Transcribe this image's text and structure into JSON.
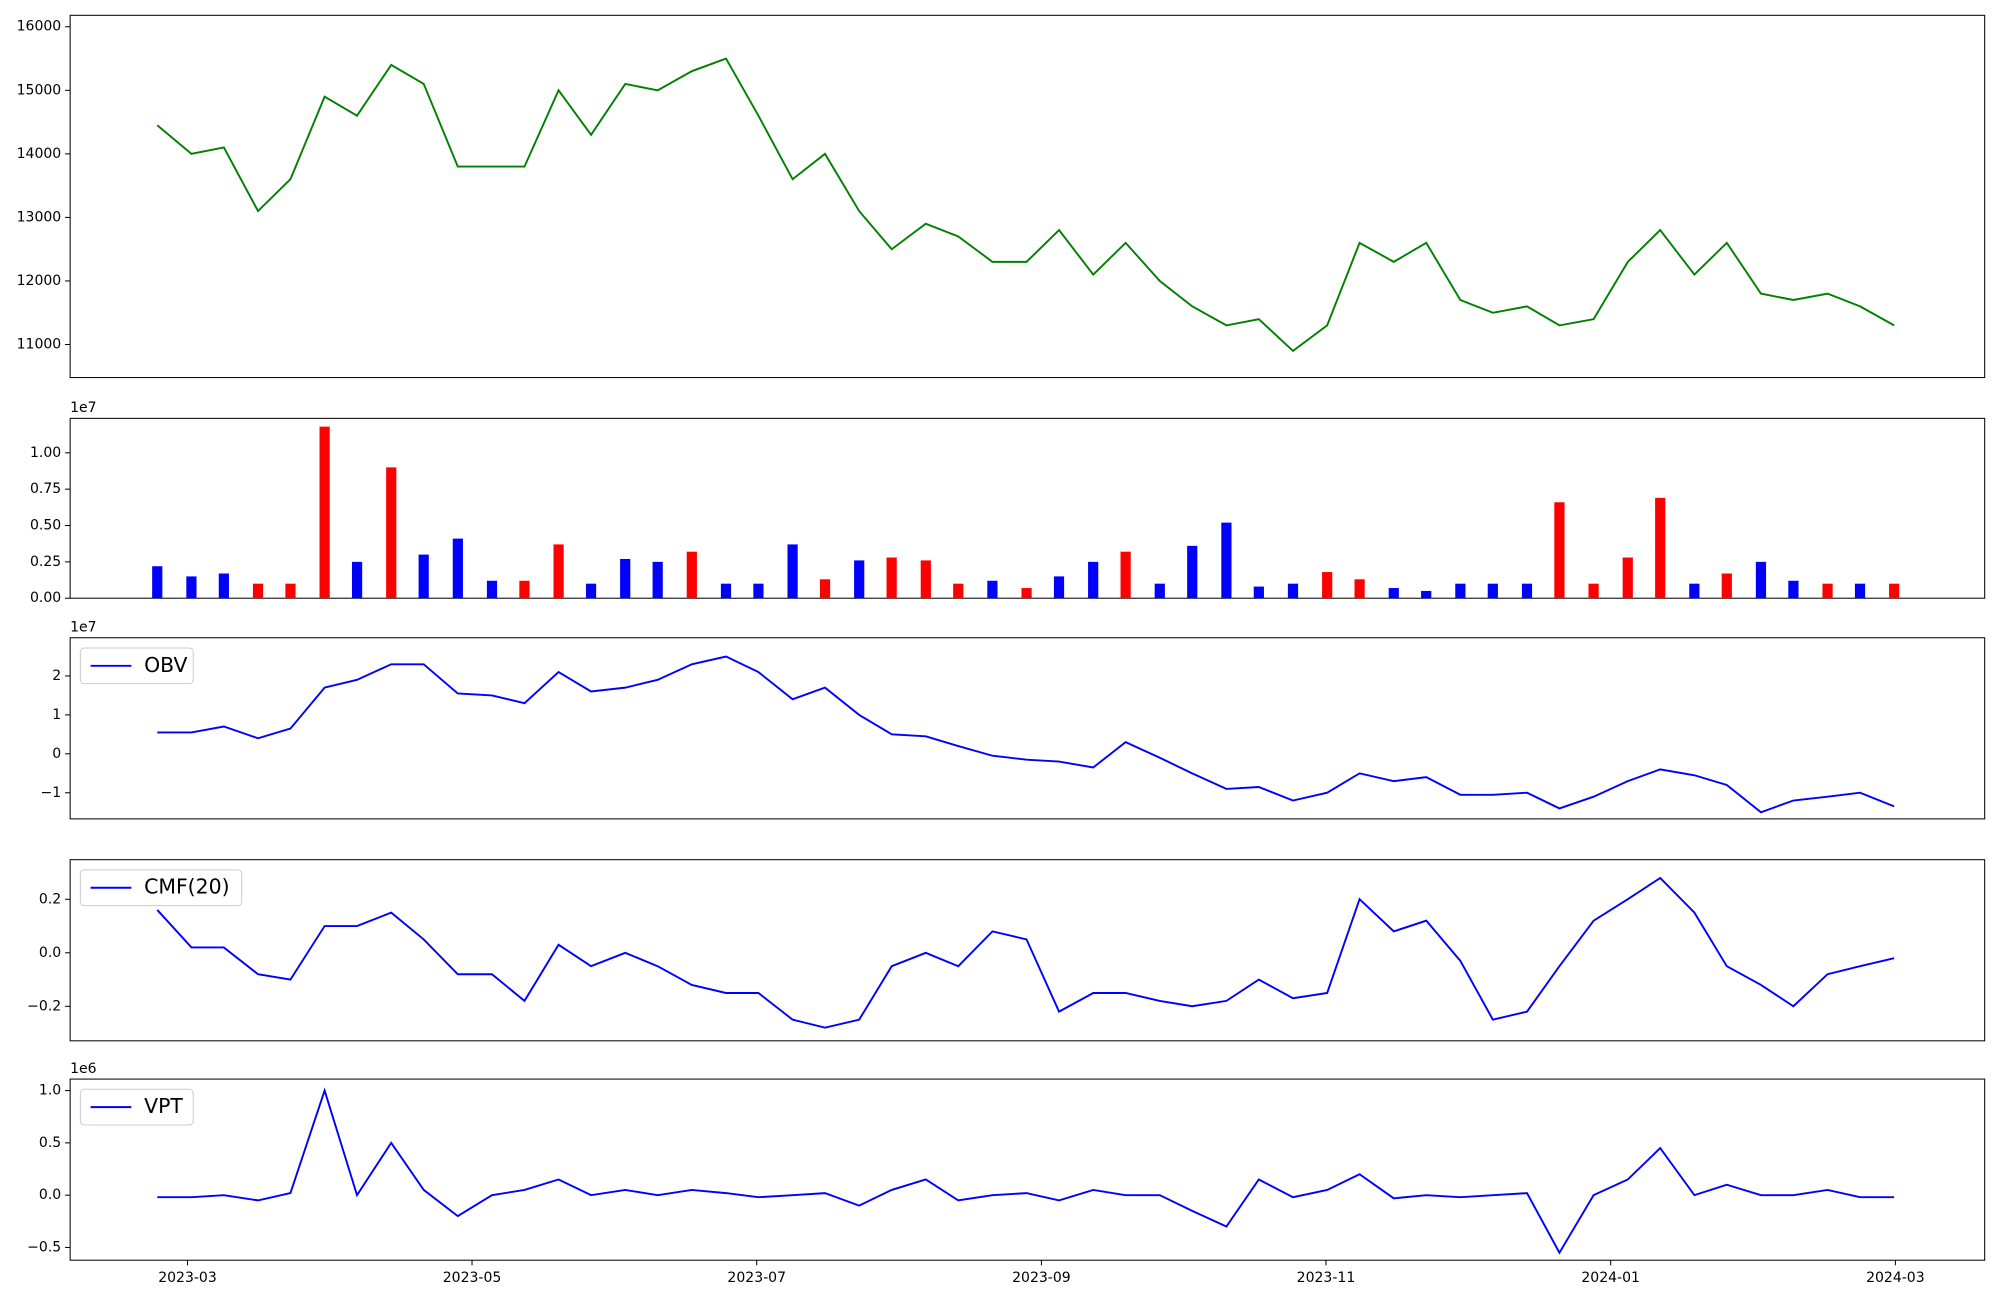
{
  "chart_data": [
    {
      "type": "line",
      "color": "#008000",
      "x": [
        2023.149,
        2023.169,
        2023.188,
        2023.208,
        2023.227,
        2023.247,
        2023.266,
        2023.286,
        2023.305,
        2023.325,
        2023.345,
        2023.364,
        2023.384,
        2023.403,
        2023.423,
        2023.442,
        2023.462,
        2023.482,
        2023.501,
        2023.521,
        2023.54,
        2023.56,
        2023.579,
        2023.599,
        2023.618,
        2023.638,
        2023.658,
        2023.677,
        2023.697,
        2023.716,
        2023.736,
        2023.755,
        2023.775,
        2023.794,
        2023.814,
        2023.834,
        2023.853,
        2023.873,
        2023.892,
        2023.912,
        2023.931,
        2023.951,
        2023.97,
        2023.99,
        2024.01,
        2024.029,
        2024.049,
        2024.068,
        2024.088,
        2024.107,
        2024.127,
        2024.146,
        2024.166
      ],
      "values": [
        14450,
        14000,
        14100,
        13100,
        13600,
        14900,
        14600,
        15400,
        15100,
        13800,
        13800,
        13800,
        15000,
        14300,
        15100,
        15000,
        15300,
        15500,
        14600,
        13600,
        14000,
        13100,
        12500,
        12900,
        12700,
        12300,
        12300,
        12800,
        12100,
        12600,
        12000,
        11600,
        11300,
        11400,
        10900,
        11300,
        12600,
        12300,
        12600,
        11700,
        11500,
        11600,
        11300,
        11400,
        12300,
        12800,
        12100,
        12600,
        11800,
        11700,
        11800,
        11600,
        11300
      ],
      "xlim": [
        2023.098,
        2024.219
      ],
      "ylim": [
        10480,
        16180
      ],
      "yticks": [
        11000,
        12000,
        13000,
        14000,
        15000,
        16000
      ]
    },
    {
      "type": "bar",
      "offset_label": "1e7",
      "x": [
        2023.149,
        2023.169,
        2023.188,
        2023.208,
        2023.227,
        2023.247,
        2023.266,
        2023.286,
        2023.305,
        2023.325,
        2023.345,
        2023.364,
        2023.384,
        2023.403,
        2023.423,
        2023.442,
        2023.462,
        2023.482,
        2023.501,
        2023.521,
        2023.54,
        2023.56,
        2023.579,
        2023.599,
        2023.618,
        2023.638,
        2023.658,
        2023.677,
        2023.697,
        2023.716,
        2023.736,
        2023.755,
        2023.775,
        2023.794,
        2023.814,
        2023.834,
        2023.853,
        2023.873,
        2023.892,
        2023.912,
        2023.931,
        2023.951,
        2023.97,
        2023.99,
        2024.01,
        2024.029,
        2024.049,
        2024.068,
        2024.088,
        2024.107,
        2024.127,
        2024.146,
        2024.166
      ],
      "values": [
        0.22,
        0.15,
        0.17,
        0.1,
        0.1,
        1.18,
        0.25,
        0.9,
        0.3,
        0.41,
        0.12,
        0.12,
        0.37,
        0.1,
        0.27,
        0.25,
        0.32,
        0.1,
        0.1,
        0.37,
        0.13,
        0.26,
        0.28,
        0.26,
        0.1,
        0.12,
        0.07,
        0.15,
        0.25,
        0.32,
        0.1,
        0.36,
        0.52,
        0.08,
        0.1,
        0.18,
        0.13,
        0.07,
        0.05,
        0.1,
        0.1,
        0.1,
        0.66,
        0.1,
        0.28,
        0.69,
        0.1,
        0.17,
        0.25,
        0.12,
        0.1,
        0.1,
        0.1
      ],
      "colors": [
        "#0000ff",
        "#0000ff",
        "#0000ff",
        "#ff0000",
        "#ff0000",
        "#ff0000",
        "#0000ff",
        "#ff0000",
        "#0000ff",
        "#0000ff",
        "#0000ff",
        "#ff0000",
        "#ff0000",
        "#0000ff",
        "#0000ff",
        "#0000ff",
        "#ff0000",
        "#0000ff",
        "#0000ff",
        "#0000ff",
        "#ff0000",
        "#0000ff",
        "#ff0000",
        "#ff0000",
        "#ff0000",
        "#0000ff",
        "#ff0000",
        "#0000ff",
        "#0000ff",
        "#ff0000",
        "#0000ff",
        "#0000ff",
        "#0000ff",
        "#0000ff",
        "#0000ff",
        "#ff0000",
        "#ff0000",
        "#0000ff",
        "#0000ff",
        "#0000ff",
        "#0000ff",
        "#0000ff",
        "#ff0000",
        "#ff0000",
        "#ff0000",
        "#ff0000",
        "#0000ff",
        "#ff0000",
        "#0000ff",
        "#0000ff",
        "#ff0000",
        "#0000ff",
        "#ff0000"
      ],
      "xlim": [
        2023.098,
        2024.219
      ],
      "ylim": [
        0,
        1.237
      ],
      "yticks": [
        {
          "value": 0,
          "label": "0.00"
        },
        0.25,
        {
          "value": 0.5,
          "label": "0.50"
        },
        0.75,
        {
          "value": 1,
          "label": "1.00"
        }
      ]
    },
    {
      "type": "line",
      "offset_label": "1e7",
      "legend": "upper left",
      "x": [
        2023.149,
        2023.169,
        2023.188,
        2023.208,
        2023.227,
        2023.247,
        2023.266,
        2023.286,
        2023.305,
        2023.325,
        2023.345,
        2023.364,
        2023.384,
        2023.403,
        2023.423,
        2023.442,
        2023.462,
        2023.482,
        2023.501,
        2023.521,
        2023.54,
        2023.56,
        2023.579,
        2023.599,
        2023.618,
        2023.638,
        2023.658,
        2023.677,
        2023.697,
        2023.716,
        2023.736,
        2023.755,
        2023.775,
        2023.794,
        2023.814,
        2023.834,
        2023.853,
        2023.873,
        2023.892,
        2023.912,
        2023.931,
        2023.951,
        2023.97,
        2023.99,
        2024.01,
        2024.029,
        2024.049,
        2024.068,
        2024.088,
        2024.107,
        2024.127,
        2024.146,
        2024.166
      ],
      "series": [
        {
          "name": "OBV",
          "color": "#0000ff",
          "values": [
            0.55,
            0.55,
            0.7,
            0.4,
            0.65,
            1.7,
            1.9,
            2.3,
            2.3,
            1.55,
            1.5,
            1.3,
            2.1,
            1.6,
            1.7,
            1.9,
            2.3,
            2.5,
            2.1,
            1.4,
            1.7,
            1.0,
            0.5,
            0.45,
            0.2,
            -0.05,
            -0.15,
            -0.2,
            -0.35,
            0.3,
            -0.1,
            -0.5,
            -0.9,
            -0.85,
            -1.2,
            -1.0,
            -0.5,
            -0.7,
            -0.6,
            -1.05,
            -1.05,
            -1.0,
            -1.4,
            -1.1,
            -0.7,
            -0.4,
            -0.55,
            -0.8,
            -1.5,
            -1.2,
            -1.1,
            -1.0,
            -1.35
          ]
        }
      ],
      "xlim": [
        2023.098,
        2024.219
      ],
      "ylim": [
        -1.67,
        2.98
      ],
      "yticks": [
        {
          "value": -1,
          "label": "−1"
        },
        0,
        1,
        2
      ]
    },
    {
      "type": "line",
      "legend": "upper left",
      "x": [
        2023.149,
        2023.169,
        2023.188,
        2023.208,
        2023.227,
        2023.247,
        2023.266,
        2023.286,
        2023.305,
        2023.325,
        2023.345,
        2023.364,
        2023.384,
        2023.403,
        2023.423,
        2023.442,
        2023.462,
        2023.482,
        2023.501,
        2023.521,
        2023.54,
        2023.56,
        2023.579,
        2023.599,
        2023.618,
        2023.638,
        2023.658,
        2023.677,
        2023.697,
        2023.716,
        2023.736,
        2023.755,
        2023.775,
        2023.794,
        2023.814,
        2023.834,
        2023.853,
        2023.873,
        2023.892,
        2023.912,
        2023.931,
        2023.951,
        2023.97,
        2023.99,
        2024.01,
        2024.029,
        2024.049,
        2024.068,
        2024.088,
        2024.107,
        2024.127,
        2024.146,
        2024.166
      ],
      "series": [
        {
          "name": "CMF(20)",
          "color": "#0000ff",
          "values": [
            0.16,
            0.02,
            0.02,
            -0.08,
            -0.1,
            0.1,
            0.1,
            0.15,
            0.05,
            -0.08,
            -0.08,
            -0.18,
            0.03,
            -0.05,
            0.0,
            -0.05,
            -0.12,
            -0.15,
            -0.15,
            -0.25,
            -0.28,
            -0.25,
            -0.05,
            0.0,
            -0.05,
            0.08,
            0.05,
            -0.22,
            -0.15,
            -0.15,
            -0.18,
            -0.2,
            -0.18,
            -0.1,
            -0.17,
            -0.15,
            0.2,
            0.08,
            0.12,
            -0.03,
            -0.25,
            -0.22,
            -0.05,
            0.12,
            0.2,
            0.28,
            0.15,
            -0.05,
            -0.12,
            -0.2,
            -0.08,
            -0.05,
            -0.02
          ]
        }
      ],
      "xlim": [
        2023.098,
        2024.219
      ],
      "ylim": [
        -0.329,
        0.348
      ],
      "yticks": [
        {
          "value": -0.2,
          "label": "−0.2"
        },
        {
          "value": 0,
          "label": "0.0"
        },
        0.2
      ]
    },
    {
      "type": "line",
      "offset_label": "1e6",
      "legend": "upper left",
      "x": [
        2023.149,
        2023.169,
        2023.188,
        2023.208,
        2023.227,
        2023.247,
        2023.266,
        2023.286,
        2023.305,
        2023.325,
        2023.345,
        2023.364,
        2023.384,
        2023.403,
        2023.423,
        2023.442,
        2023.462,
        2023.482,
        2023.501,
        2023.521,
        2023.54,
        2023.56,
        2023.579,
        2023.599,
        2023.618,
        2023.638,
        2023.658,
        2023.677,
        2023.697,
        2023.716,
        2023.736,
        2023.755,
        2023.775,
        2023.794,
        2023.814,
        2023.834,
        2023.853,
        2023.873,
        2023.892,
        2023.912,
        2023.931,
        2023.951,
        2023.97,
        2023.99,
        2024.01,
        2024.029,
        2024.049,
        2024.068,
        2024.088,
        2024.107,
        2024.127,
        2024.146,
        2024.166
      ],
      "series": [
        {
          "name": "VPT",
          "color": "#0000ff",
          "values": [
            -0.02,
            -0.02,
            0.0,
            -0.05,
            0.02,
            1.0,
            0.0,
            0.5,
            0.05,
            -0.2,
            0.0,
            0.05,
            0.15,
            0.0,
            0.05,
            0.0,
            0.05,
            0.02,
            -0.02,
            0.0,
            0.02,
            -0.1,
            0.05,
            0.15,
            -0.05,
            0.0,
            0.02,
            -0.05,
            0.05,
            0.0,
            0.0,
            -0.15,
            -0.3,
            0.15,
            -0.02,
            0.05,
            0.2,
            -0.03,
            0.0,
            -0.02,
            0.0,
            0.02,
            -0.55,
            0.0,
            0.15,
            0.45,
            0.0,
            0.1,
            0.0,
            0.0,
            0.05,
            -0.02,
            -0.02
          ]
        }
      ],
      "xlim": [
        2023.098,
        2024.219
      ],
      "ylim": [
        -0.622,
        1.11
      ],
      "yticks": [
        {
          "value": -0.5,
          "label": "−0.5"
        },
        {
          "value": 0,
          "label": "0.0"
        },
        0.5,
        {
          "value": 1,
          "label": "1.0"
        }
      ],
      "xticks": [
        {
          "value": 2023.1667,
          "label": "2023-03"
        },
        {
          "value": 2023.3333,
          "label": "2023-05"
        },
        {
          "value": 2023.5,
          "label": "2023-07"
        },
        {
          "value": 2023.6667,
          "label": "2023-09"
        },
        {
          "value": 2023.8333,
          "label": "2023-11"
        },
        {
          "value": 2024.0,
          "label": "2024-01"
        },
        {
          "value": 2024.1667,
          "label": "2024-03"
        }
      ]
    }
  ]
}
